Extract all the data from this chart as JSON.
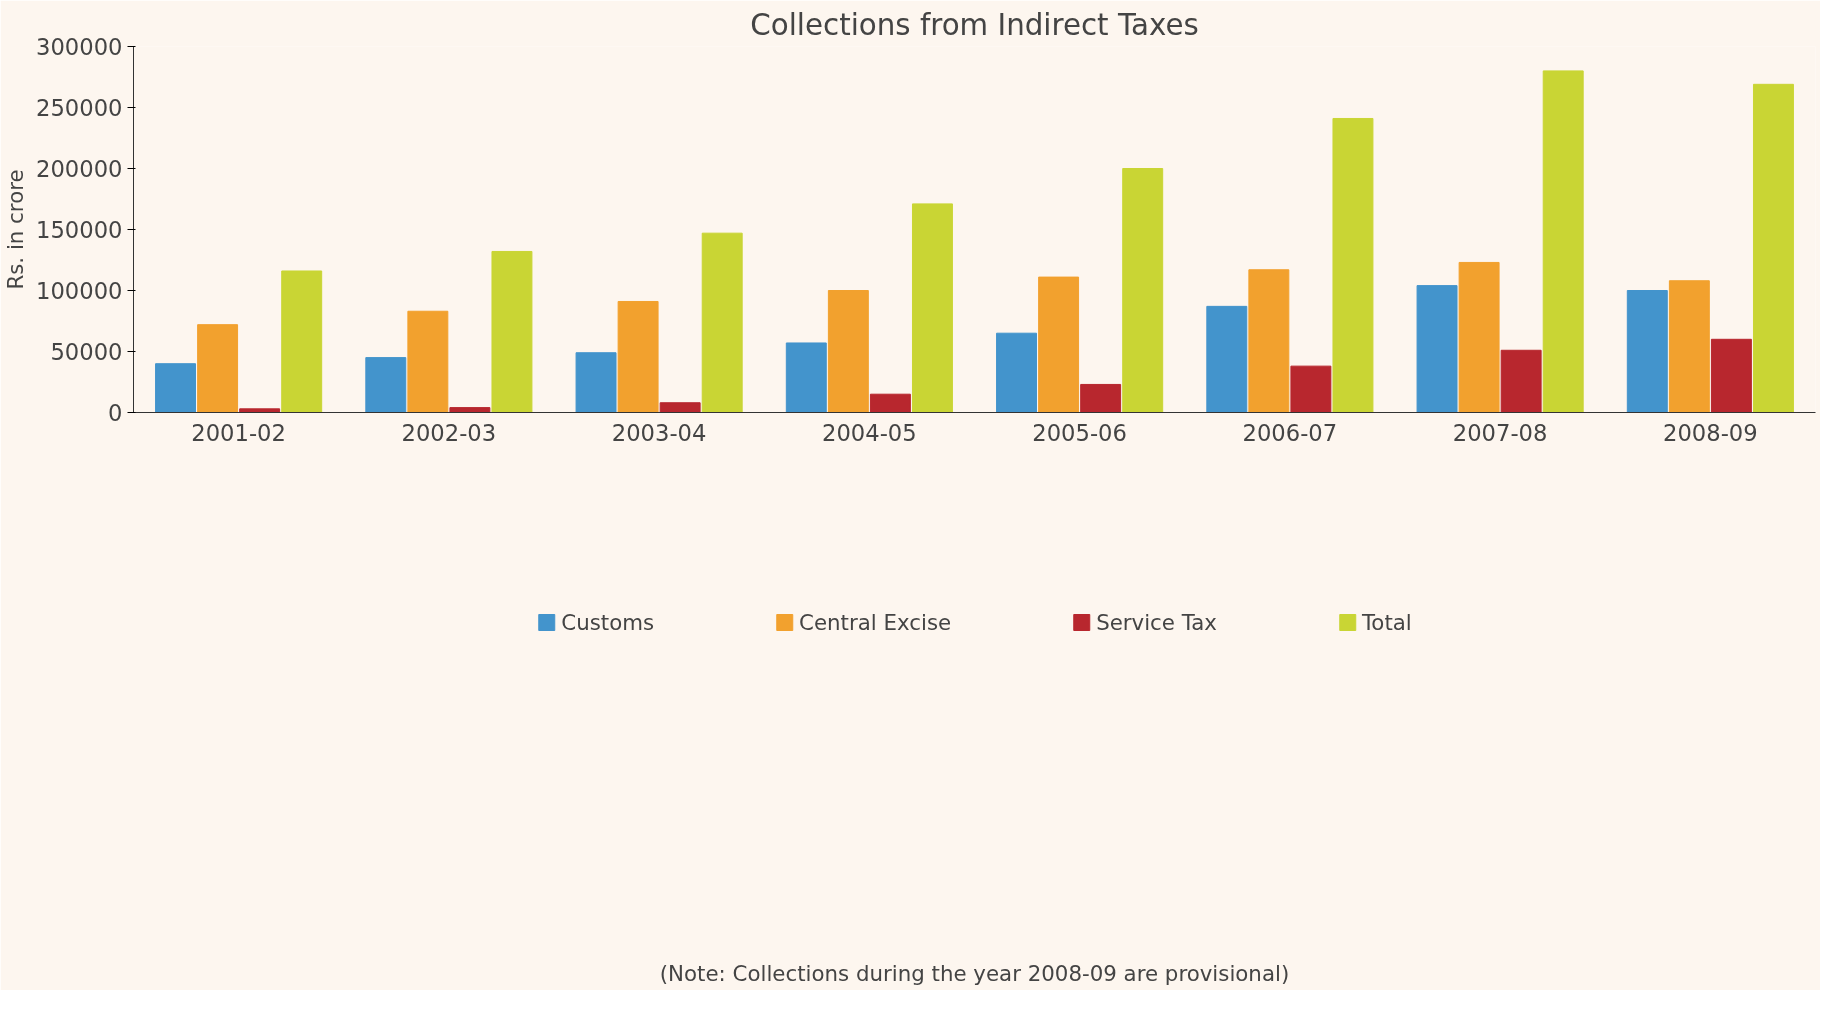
{
  "chart_data": {
    "type": "bar",
    "title": "Collections from Indirect Taxes",
    "ylabel": "Rs. in crore",
    "categories": [
      "2001-02",
      "2002-03",
      "2003-04",
      "2004-05",
      "2005-06",
      "2006-07",
      "2007-08",
      "2008-09"
    ],
    "series": [
      {
        "name": "Customs",
        "color": "#4394cc",
        "values": [
          40000,
          45000,
          49000,
          57000,
          65000,
          87000,
          104000,
          100000
        ]
      },
      {
        "name": "Central Excise",
        "color": "#f2a12e",
        "values": [
          72000,
          83000,
          91000,
          100000,
          111000,
          117000,
          123000,
          108000
        ]
      },
      {
        "name": "Service Tax",
        "color": "#b8272e",
        "values": [
          3000,
          4000,
          8000,
          15000,
          23000,
          38000,
          51000,
          60000
        ]
      },
      {
        "name": "Total",
        "color": "#c9d534",
        "values": [
          116000,
          132000,
          147000,
          171000,
          200000,
          241000,
          280000,
          269000
        ]
      }
    ],
    "ylim": [
      0,
      300000
    ],
    "yticks": [
      0,
      50000,
      100000,
      150000,
      200000,
      250000,
      300000
    ],
    "grid": false,
    "legend": "bottom",
    "annotations": [
      "(Note: Collections during the year 2008-09 are provisional)"
    ]
  }
}
